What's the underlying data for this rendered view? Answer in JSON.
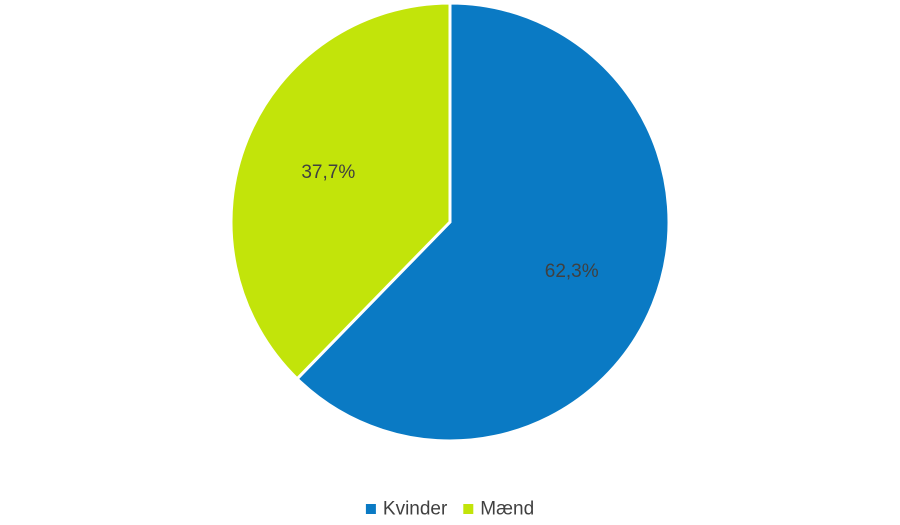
{
  "chart_data": {
    "type": "pie",
    "categories": [
      "Kvinder",
      "Mænd"
    ],
    "values": [
      62.3,
      37.7
    ],
    "data_labels": [
      "62,3%",
      "37,7%"
    ],
    "colors": [
      "#0A7AC4",
      "#C2E40A"
    ],
    "unit": "%",
    "start_angle_deg": 0,
    "direction": "clockwise",
    "legend": {
      "position": "bottom",
      "entries": [
        "Kvinder",
        "Mænd"
      ]
    }
  }
}
